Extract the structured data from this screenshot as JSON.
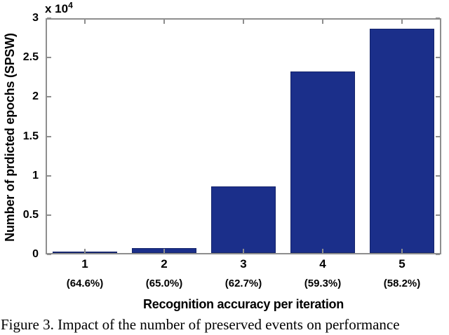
{
  "figure": {
    "offset_label": "x 10",
    "offset_exponent": "4",
    "ylabel": "Number of prdicted epochs (SPSW)",
    "xlabel": "Recognition accuracy per iteration",
    "caption": "Figure 3. Impact of the number of preserved events on performance"
  },
  "chart_data": {
    "type": "bar",
    "title": "",
    "xlabel": "Recognition accuracy per iteration",
    "ylabel": "Number of prdicted epochs (SPSW)",
    "y_axis_offset_label": "x 10^4",
    "categories": [
      "1",
      "2",
      "3",
      "4",
      "5"
    ],
    "category_sublabels": [
      "(64.6%)",
      "(65.0%)",
      "(62.7%)",
      "(59.3%)",
      "(58.2%)"
    ],
    "values": [
      200,
      600,
      8500,
      23100,
      28500
    ],
    "ylim": [
      0,
      30000
    ],
    "ytick_values": [
      0,
      5000,
      10000,
      15000,
      20000,
      25000,
      30000
    ],
    "ytick_labels": [
      "0",
      "0.5",
      "1",
      "1.5",
      "2",
      "2.5",
      "3"
    ],
    "grid": false,
    "legend": null,
    "bar_color": "#1B2F8A",
    "bar_edge_color": "#14246B",
    "axis_color": "#8E8E8E",
    "text_color": "#000000"
  }
}
